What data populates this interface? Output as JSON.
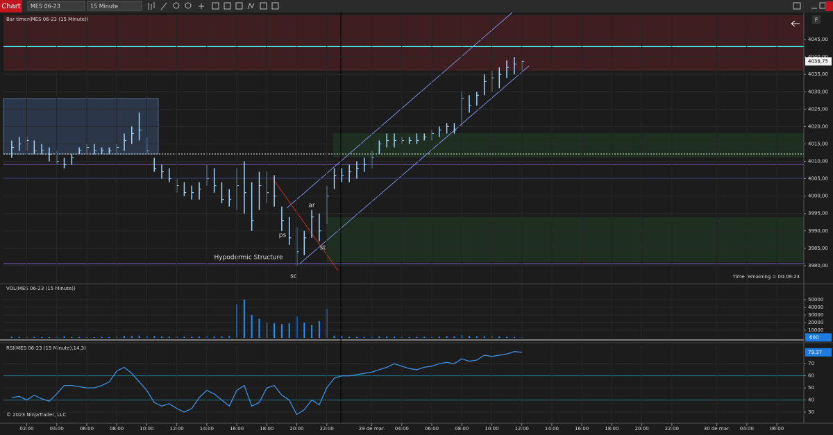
{
  "toolbar": {
    "tab": "Chart",
    "instrument": "MES 06-23",
    "interval": "15 Minute",
    "panel_button": "F"
  },
  "footer": "© 2023 NinjaTrader, LLC",
  "chart_data": [
    {
      "type": "range-bar",
      "title": "Bar timer(MES 06-23 (15 Minute))",
      "color": "#9fd8ff",
      "high": [
        4016,
        4017,
        4017,
        4016,
        4015,
        4014,
        4013,
        4011,
        4012,
        4014,
        4015,
        4015,
        4014,
        4014,
        4015,
        4018,
        4020,
        4024,
        4017,
        4011,
        4009,
        4008,
        4005,
        4004,
        4003,
        4004,
        4009,
        4008,
        4004,
        4002,
        4008,
        4010,
        4004,
        4007,
        4007,
        4006,
        3997,
        3994,
        3991,
        3990,
        3996,
        3995,
        4003,
        4008,
        4008,
        4009,
        4010,
        4011,
        4013,
        4016,
        4018,
        4018,
        4017,
        4017,
        4018,
        4018,
        4019,
        4020,
        4021,
        4021,
        4030,
        4029,
        4030,
        4035,
        4036,
        4037,
        4039,
        4040,
        4039
      ],
      "low": [
        4011,
        4013,
        4013,
        4012,
        4012,
        4010,
        4009,
        4008,
        4009,
        4012,
        4012,
        4012,
        4012,
        4012,
        4012,
        4013,
        4015,
        4016,
        4012,
        4007,
        4005,
        4004,
        4001,
        4000,
        3999,
        3999,
        4003,
        4001,
        3998,
        3997,
        3996,
        3995,
        3990,
        3996,
        3998,
        3997,
        3990,
        3986,
        3980,
        3983,
        3988,
        3987,
        3992,
        4002,
        4004,
        4004,
        4005,
        4007,
        4008,
        4012,
        4014,
        4014,
        4015,
        4015,
        4015,
        4016,
        4016,
        4017,
        4018,
        4018,
        4020,
        4024,
        4026,
        4029,
        4030,
        4031,
        4034,
        4035,
        4036
      ],
      "close": [
        4014,
        4015,
        4016,
        4013,
        4013,
        4012,
        4010,
        4009,
        4011,
        4013,
        4014,
        4013,
        4013,
        4013,
        4014,
        4016,
        4018,
        4019,
        4013,
        4008,
        4007,
        4005,
        4003,
        4001,
        4001,
        4002,
        4005,
        4003,
        3999,
        3999,
        4003,
        4001,
        3993,
        4003,
        4001,
        4000,
        3993,
        3988,
        3984,
        3988,
        3994,
        3990,
        4000,
        4006,
        4006,
        4007,
        4008,
        4009,
        4011,
        4015,
        4016,
        4016,
        4016,
        4016,
        4016,
        4017,
        4018,
        4019,
        4020,
        4019,
        4028,
        4026,
        4029,
        4033,
        4034,
        4035,
        4037,
        4038,
        4038.75
      ],
      "last_label": "4038,75",
      "xlim": [
        -1.1,
        105.6
      ],
      "ylim": [
        3975,
        4052
      ],
      "yticks": [
        {
          "value": 3980,
          "label": "3980,00"
        },
        {
          "value": 3985,
          "label": "3985,00"
        },
        {
          "value": 3990,
          "label": "3990,00"
        },
        {
          "value": 3995,
          "label": "3995,00"
        },
        {
          "value": 4000,
          "label": "4000,00"
        },
        {
          "value": 4005,
          "label": "4005,00"
        },
        {
          "value": 4010,
          "label": "4010,00"
        },
        {
          "value": 4015,
          "label": "4015,00"
        },
        {
          "value": 4020,
          "label": "4020,00"
        },
        {
          "value": 4025,
          "label": "4025,00"
        },
        {
          "value": 4030,
          "label": "4030,00"
        },
        {
          "value": 4035,
          "label": "4035,00"
        },
        {
          "value": 4040,
          "label": "4040,00"
        },
        {
          "value": 4045,
          "label": "4045,00"
        }
      ],
      "annotations": [
        "Hypodermic Structure",
        "ps",
        "ar",
        "st",
        "sc"
      ],
      "status": "Time remaining = 00:09:23"
    },
    {
      "type": "bar",
      "title": "VOL(MES 06-23 (15 Minute))",
      "color": "#1e90ff",
      "values": [
        1500,
        1200,
        1000,
        1300,
        900,
        1100,
        1400,
        2000,
        1000,
        1200,
        1000,
        900,
        1300,
        1100,
        1500,
        2500,
        2200,
        3000,
        2000,
        2200,
        1800,
        1600,
        2000,
        1500,
        1400,
        1700,
        2500,
        1800,
        2000,
        2300,
        44000,
        50000,
        30000,
        25000,
        20000,
        19000,
        18000,
        19000,
        28000,
        20000,
        17000,
        22000,
        38000,
        3000,
        2000,
        1400,
        1300,
        1200,
        1500,
        2000,
        1800,
        1600,
        1400,
        1200,
        1300,
        1500,
        1400,
        1600,
        2200,
        1800,
        3500,
        2500,
        2000,
        2200,
        2400,
        1800,
        1500,
        1200,
        600
      ],
      "xlim": [
        -1.1,
        105.6
      ],
      "ylim": [
        0,
        70000
      ],
      "yticks": [
        10000,
        20000,
        30000,
        40000,
        50000
      ]
    },
    {
      "type": "line",
      "title": "RSI(MES 06-23 (15 Minute),14,3)",
      "color": "#3d8fe0",
      "values": [
        42,
        43,
        40,
        44,
        41,
        39,
        45,
        52,
        52,
        51,
        50,
        50,
        52,
        55,
        64,
        67,
        62,
        55,
        48,
        38,
        35,
        37,
        33,
        30,
        33,
        42,
        48,
        45,
        40,
        35,
        48,
        52,
        35,
        38,
        50,
        52,
        44,
        40,
        28,
        32,
        40,
        36,
        50,
        58,
        60,
        60,
        61,
        62,
        63,
        65,
        67,
        70,
        68,
        66,
        65,
        67,
        68,
        70,
        71,
        70,
        74,
        72,
        73,
        77,
        76,
        77,
        78,
        80,
        79.37
      ],
      "last_label": "79,37",
      "levels": [
        60,
        40
      ],
      "xlim": [
        -1.1,
        105.6
      ],
      "ylim": [
        22,
        85
      ],
      "yticks": [
        30,
        40,
        50,
        60,
        70
      ],
      "xticks": [
        {
          "value": 2,
          "label": "02:00"
        },
        {
          "value": 6,
          "label": "04:00"
        },
        {
          "value": 10,
          "label": "06:00"
        },
        {
          "value": 14,
          "label": "08:00"
        },
        {
          "value": 18,
          "label": "10:00"
        },
        {
          "value": 22,
          "label": "12:00"
        },
        {
          "value": 26,
          "label": "14:00"
        },
        {
          "value": 30,
          "label": "16:00"
        },
        {
          "value": 34,
          "label": "18:00"
        },
        {
          "value": 38,
          "label": "20:00"
        },
        {
          "value": 42,
          "label": "22:00"
        },
        {
          "value": 48,
          "label": "29 de mar."
        },
        {
          "value": 52,
          "label": "04:00"
        },
        {
          "value": 56,
          "label": "06:00"
        },
        {
          "value": 60,
          "label": "08:00"
        },
        {
          "value": 64,
          "label": "10:00"
        },
        {
          "value": 68,
          "label": "12:00"
        },
        {
          "value": 72,
          "label": "14:00"
        },
        {
          "value": 76,
          "label": "16:00"
        },
        {
          "value": 80,
          "label": "18:00"
        },
        {
          "value": 84,
          "label": "20:00"
        },
        {
          "value": 88,
          "label": "22:00"
        },
        {
          "value": 94,
          "label": "30 de mar."
        },
        {
          "value": 98,
          "label": "04:00"
        },
        {
          "value": 102,
          "label": "06:00"
        }
      ]
    }
  ]
}
